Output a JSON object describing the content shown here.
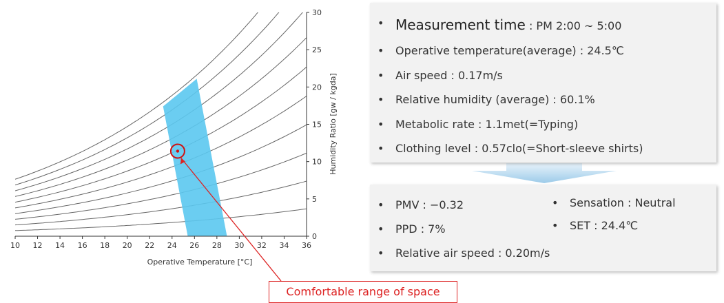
{
  "chart_data": {
    "type": "psychrometric",
    "x_label": "Operative Temperature [°C]",
    "y_label": "Humidity Ratio [gw / kgda]",
    "xlim": [
      10,
      36
    ],
    "xticks": [
      10,
      12,
      14,
      16,
      18,
      20,
      22,
      24,
      26,
      28,
      30,
      32,
      34,
      36
    ],
    "ylim": [
      0,
      30
    ],
    "yticks": [
      0,
      5,
      10,
      15,
      20,
      25,
      30
    ],
    "comfort_zone": {
      "color": "#5bc8ef",
      "x": [
        23.2,
        26.2,
        28.9,
        25.4
      ],
      "y": [
        17.4,
        21.1,
        0,
        0
      ]
    },
    "point": {
      "color": "#d01010",
      "x": 24.5,
      "y": 11.4
    },
    "annotation": "Comfortable range of space"
  },
  "conditions": {
    "measurement": {
      "label": "Measurement time",
      "value": " : PM 2:00 ~ 5:00"
    },
    "items": [
      "Operative temperature(average) : 24.5℃",
      "Air speed : 0.17m/s",
      "Relative humidity (average)  : 60.1%",
      "Metabolic rate : 1.1met(=Typing)",
      "Clothing level : 0.57clo(=Short-sleeve shirts)"
    ]
  },
  "results": {
    "left": [
      "PMV : −0.32",
      "PPD : 7%",
      "Relative air speed : 0.20m/s"
    ],
    "right": [
      "Sensation : Neutral",
      "SET : 24.4℃"
    ]
  }
}
